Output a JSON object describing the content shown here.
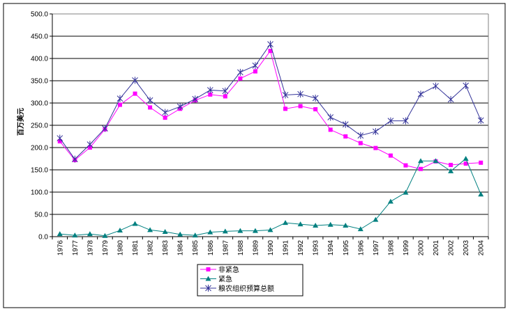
{
  "chart_data": {
    "type": "line",
    "ylabel": "百万美元",
    "ylim": [
      0,
      500
    ],
    "yticks": [
      "0.0",
      "50.0",
      "100.0",
      "150.0",
      "200.0",
      "250.0",
      "300.0",
      "350.0",
      "400.0",
      "450.0",
      "500.0"
    ],
    "grid": true,
    "legend_position": "bottom",
    "categories": [
      "1976",
      "1977",
      "1978",
      "1979",
      "1980",
      "1981",
      "1982",
      "1983",
      "1984",
      "1985",
      "1986",
      "1987",
      "1988",
      "1989",
      "1990",
      "1991",
      "1992",
      "1993",
      "1994",
      "1995",
      "1996",
      "1997",
      "1998",
      "1999",
      "2000",
      "2001",
      "2002",
      "2003",
      "2004"
    ],
    "series": [
      {
        "name": "非紧急",
        "color": "#ff00ff",
        "marker": "square",
        "values": [
          214,
          172,
          200,
          241,
          296,
          321,
          290,
          267,
          287,
          306,
          319,
          315,
          355,
          371,
          417,
          287,
          293,
          286,
          240,
          225,
          210,
          199,
          182,
          160,
          152,
          169,
          161,
          164,
          166
        ]
      },
      {
        "name": "紧急",
        "color": "#008080",
        "marker": "triangle",
        "values": [
          6,
          3,
          6,
          2,
          14,
          29,
          15,
          11,
          5,
          3,
          10,
          12,
          13,
          13,
          15,
          31,
          28,
          25,
          27,
          25,
          17,
          38,
          79,
          99,
          170,
          170,
          147,
          175,
          95
        ]
      },
      {
        "name": "粮农组织预算总额",
        "color": "#333399",
        "marker": "star",
        "values": [
          221,
          174,
          207,
          243,
          310,
          351,
          306,
          279,
          292,
          309,
          329,
          327,
          369,
          384,
          432,
          318,
          320,
          311,
          268,
          252,
          227,
          236,
          260,
          260,
          320,
          338,
          308,
          339,
          261
        ]
      }
    ]
  }
}
